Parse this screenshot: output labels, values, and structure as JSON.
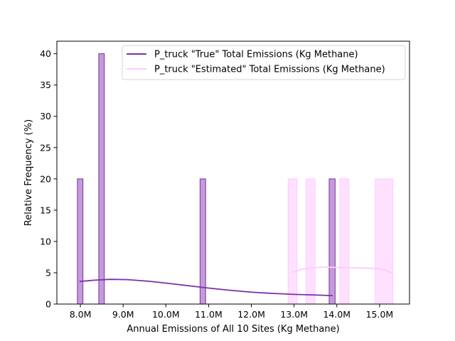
{
  "chart_data": {
    "type": "bar",
    "xlabel": "Annual Emissions of All 10 Sites (Kg Methane)",
    "ylabel": "Relative Frequency (%)",
    "xlim": [
      7.45,
      15.7
    ],
    "ylim": [
      0,
      42
    ],
    "x_ticks": [
      {
        "value": 8.0,
        "label": "8.0M"
      },
      {
        "value": 9.0,
        "label": "9.0M"
      },
      {
        "value": 10.0,
        "label": "10.0M"
      },
      {
        "value": 11.0,
        "label": "11.0M"
      },
      {
        "value": 12.0,
        "label": "12.0M"
      },
      {
        "value": 13.0,
        "label": "13.0M"
      },
      {
        "value": 14.0,
        "label": "14.0M"
      },
      {
        "value": 15.0,
        "label": "15.0M"
      }
    ],
    "y_ticks": [
      0,
      5,
      10,
      15,
      20,
      25,
      30,
      35,
      40
    ],
    "grid": false,
    "legend_position": "top-right",
    "series": [
      {
        "name": "P_truck \"True\" Total Emissions (Kg Methane)",
        "color": "#7b2fa8",
        "fill": "#c39bd8",
        "bars": [
          {
            "x0": 7.93,
            "x1": 8.06,
            "value": 20
          },
          {
            "x0": 8.43,
            "x1": 8.56,
            "value": 40
          },
          {
            "x0": 10.8,
            "x1": 10.93,
            "value": 20
          },
          {
            "x0": 13.82,
            "x1": 13.96,
            "value": 20
          }
        ],
        "kde": [
          {
            "x": 7.98,
            "y": 3.6
          },
          {
            "x": 8.3,
            "y": 3.8
          },
          {
            "x": 8.7,
            "y": 3.95
          },
          {
            "x": 9.1,
            "y": 3.9
          },
          {
            "x": 9.6,
            "y": 3.65
          },
          {
            "x": 10.0,
            "y": 3.35
          },
          {
            "x": 10.5,
            "y": 2.95
          },
          {
            "x": 11.0,
            "y": 2.55
          },
          {
            "x": 11.5,
            "y": 2.2
          },
          {
            "x": 12.0,
            "y": 1.9
          },
          {
            "x": 12.5,
            "y": 1.7
          },
          {
            "x": 13.0,
            "y": 1.55
          },
          {
            "x": 13.5,
            "y": 1.45
          },
          {
            "x": 13.9,
            "y": 1.35
          }
        ]
      },
      {
        "name": "P_truck \"Estimated\" Total Emissions (Kg Methane)",
        "color": "#ffc9ff",
        "fill": "#ffe0ff",
        "bars": [
          {
            "x0": 12.86,
            "x1": 13.07,
            "value": 20
          },
          {
            "x0": 13.28,
            "x1": 13.49,
            "value": 20
          },
          {
            "x0": 14.07,
            "x1": 14.28,
            "value": 20
          },
          {
            "x0": 14.9,
            "x1": 15.31,
            "value": 20
          }
        ],
        "kde": [
          {
            "x": 12.95,
            "y": 5.0
          },
          {
            "x": 13.15,
            "y": 5.5
          },
          {
            "x": 13.4,
            "y": 5.8
          },
          {
            "x": 13.7,
            "y": 5.9
          },
          {
            "x": 14.0,
            "y": 5.85
          },
          {
            "x": 14.3,
            "y": 5.8
          },
          {
            "x": 14.6,
            "y": 5.75
          },
          {
            "x": 14.9,
            "y": 5.7
          },
          {
            "x": 15.1,
            "y": 5.5
          },
          {
            "x": 15.3,
            "y": 4.9
          }
        ]
      }
    ]
  }
}
